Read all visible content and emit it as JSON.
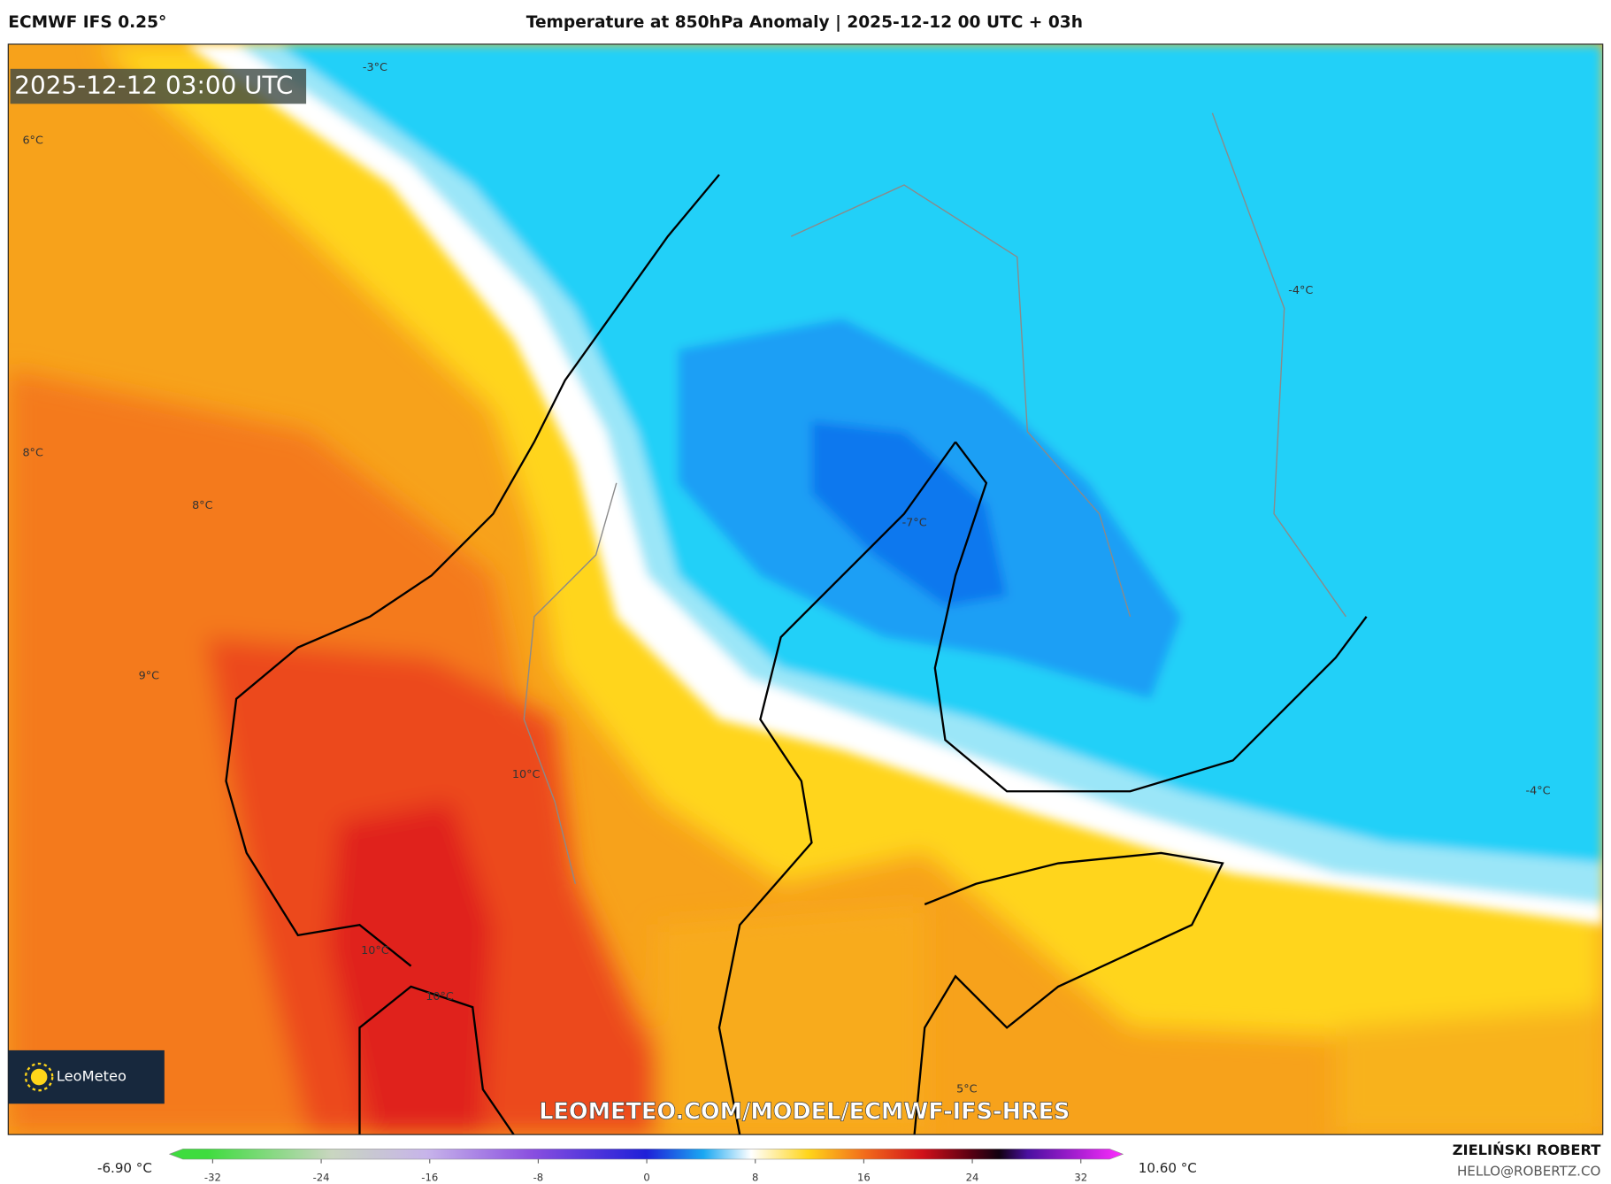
{
  "header": {
    "model": "ECMWF IFS 0.25°",
    "title": "Temperature at 850hPa Anomaly | 2025-12-12 00 UTC + 03h"
  },
  "map": {
    "timestamp": "2025-12-12 03:00 UTC",
    "contour_labels": [
      "-3°C",
      "6°C",
      "8°C",
      "8°C",
      "9°C",
      "10°C",
      "10°C",
      "10°C",
      "-7°C",
      "-4°C",
      "-4°C",
      "5°C"
    ],
    "logo": "LeoMeteo",
    "watermark": "LEOMETEO.COM/MODEL/ECMWF-IFS-HRES"
  },
  "colorbar": {
    "min_label": "-6.90 °C",
    "max_label": "10.60 °C",
    "range": [
      -32,
      32
    ],
    "ticks": [
      -32,
      -24,
      -16,
      -8,
      0,
      8,
      16,
      24,
      32
    ]
  },
  "footer": {
    "author": "ZIELIŃSKI ROBERT",
    "email": "HELLO@ROBERTZ.CO"
  }
}
